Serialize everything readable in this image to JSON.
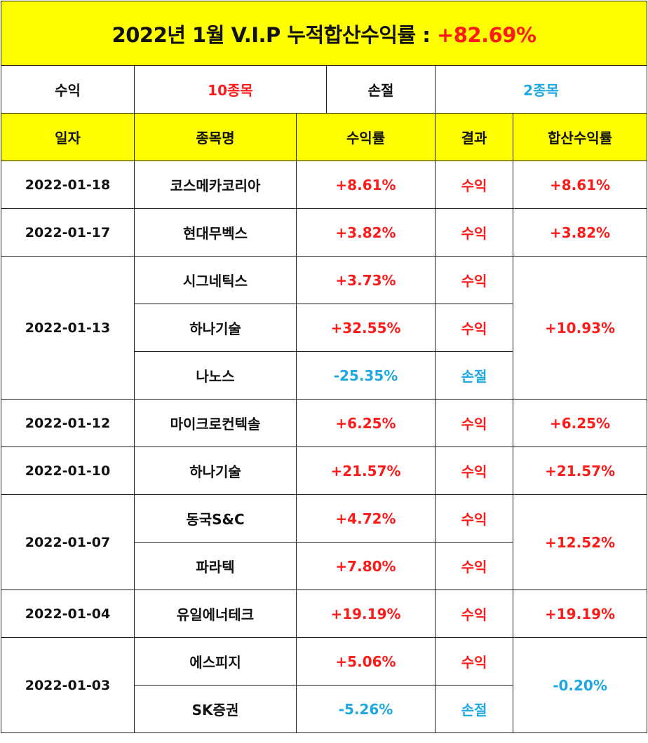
{
  "title": {
    "prefix": "2022년 1월 V.I.P 누적합산수익률 : ",
    "value": "+82.69%"
  },
  "summary": {
    "profit_label": "수익",
    "profit_count": "10종목",
    "loss_label": "손절",
    "loss_count": "2종목"
  },
  "headers": [
    "일자",
    "종목명",
    "수익률",
    "결과",
    "합산수익률"
  ],
  "colors": {
    "header_bg": "#ffff00",
    "profit": "#ff1a1a",
    "loss": "#1ea7e1"
  },
  "rows": [
    {
      "date": "2022-01-18",
      "name": "코스메카코리아",
      "rate": "+8.61%",
      "result": "수익",
      "total": "+8.61%"
    },
    {
      "date": "2022-01-17",
      "name": "현대무벡스",
      "rate": "+3.82%",
      "result": "수익",
      "total": "+3.82%"
    },
    {
      "date": "2022-01-13",
      "name": "시그네틱스",
      "rate": "+3.73%",
      "result": "수익",
      "total": "+10.93%"
    },
    {
      "name": "하나기술",
      "rate": "+32.55%",
      "result": "수익"
    },
    {
      "name": "나노스",
      "rate": "-25.35%",
      "result": "손절"
    },
    {
      "date": "2022-01-12",
      "name": "마이크로컨텍솔",
      "rate": "+6.25%",
      "result": "수익",
      "total": "+6.25%"
    },
    {
      "date": "2022-01-10",
      "name": "하나기술",
      "rate": "+21.57%",
      "result": "수익",
      "total": "+21.57%"
    },
    {
      "date": "2022-01-07",
      "name": "동국S&C",
      "rate": "+4.72%",
      "result": "수익",
      "total": "+12.52%"
    },
    {
      "name": "파라텍",
      "rate": "+7.80%",
      "result": "수익"
    },
    {
      "date": "2022-01-04",
      "name": "유일에너테크",
      "rate": "+19.19%",
      "result": "수익",
      "total": "+19.19%"
    },
    {
      "date": "2022-01-03",
      "name": "에스피지",
      "rate": "+5.06%",
      "result": "수익",
      "total": "-0.20%"
    },
    {
      "name": "SK증권",
      "rate": "-5.26%",
      "result": "손절"
    }
  ]
}
